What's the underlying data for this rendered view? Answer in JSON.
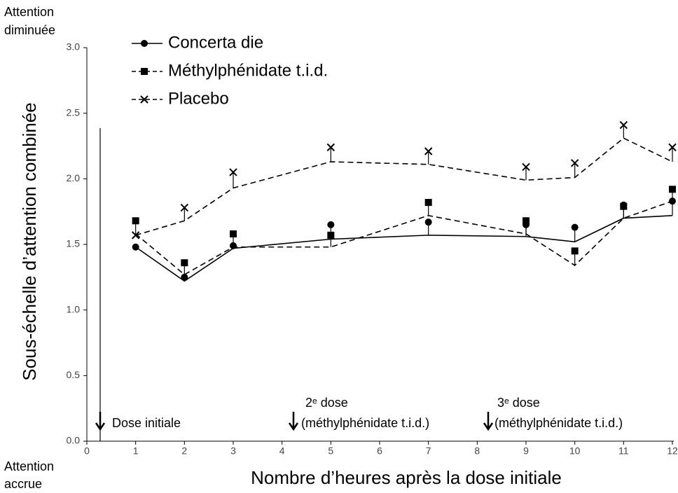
{
  "chart_data": {
    "type": "line",
    "corner_labels": {
      "top": [
        "Attention",
        "diminuée"
      ],
      "bottom": [
        "Attention",
        "accrue"
      ]
    },
    "xlabel": "Nombre d’heures après la dose initiale",
    "ylabel": "Sous-échelle d’attention combinée",
    "annotations": [
      "Dose initiale",
      "2ᵉ dose",
      "(méthylphénidate t.i.d.)",
      "3ᵉ dose",
      "(méthylphénidate t.i.d.)"
    ],
    "x": [
      1,
      2,
      3,
      5,
      7,
      9,
      10,
      11,
      12
    ],
    "series": [
      {
        "name": "Concerta die",
        "color": "#000000",
        "marker": "circle",
        "dash": "solid",
        "values": [
          1.48,
          1.22,
          1.47,
          1.54,
          1.57,
          1.56,
          1.52,
          1.7,
          1.72
        ],
        "errors": [
          0.0,
          0.03,
          0.02,
          0.11,
          0.1,
          0.09,
          0.11,
          0.1,
          0.11
        ]
      },
      {
        "name": "Méthylphénidate t.i.d.",
        "color": "#000000",
        "marker": "square",
        "dash": "dashed",
        "values": [
          1.58,
          1.27,
          1.48,
          1.48,
          1.72,
          1.58,
          1.34,
          1.7,
          1.83
        ],
        "errors": [
          0.1,
          0.09,
          0.1,
          0.09,
          0.1,
          0.1,
          0.11,
          0.09,
          0.09
        ]
      },
      {
        "name": "Placebo",
        "color": "#000000",
        "marker": "x",
        "dash": "dashed",
        "values": [
          1.57,
          1.68,
          1.93,
          2.13,
          2.11,
          1.99,
          2.01,
          2.31,
          2.13
        ],
        "errors": [
          0.0,
          0.1,
          0.12,
          0.11,
          0.1,
          0.1,
          0.11,
          0.1,
          0.11
        ]
      }
    ],
    "xlim": [
      0,
      12
    ],
    "xticks": [
      0,
      1,
      2,
      3,
      4,
      5,
      6,
      7,
      8,
      9,
      10,
      11,
      12
    ],
    "ylim": [
      0,
      3
    ],
    "yticks": [
      {
        "value": 0,
        "label": "0.0"
      },
      {
        "value": 0.5,
        "label": "0.5"
      },
      {
        "value": 1,
        "label": "1.0"
      },
      {
        "value": 1.5,
        "label": "1.5"
      },
      {
        "value": 2,
        "label": "2.0"
      },
      {
        "value": 2.5,
        "label": "2.5"
      },
      {
        "value": 3,
        "label": "3.0"
      }
    ]
  }
}
